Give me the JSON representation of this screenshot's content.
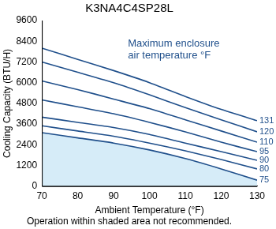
{
  "chart_data": {
    "type": "line",
    "title": "K3NA4C4SP28L",
    "x_label": "Ambient Temperature (°F)",
    "y_label": "Cooling Capacity (BTU/H)",
    "annotation": [
      "Maximum enclosure",
      "air temperature °F"
    ],
    "note": "Operation within shaded area not recommended.",
    "x": [
      70,
      80,
      90,
      100,
      110,
      120,
      130
    ],
    "series": [
      {
        "name": "131",
        "color": "#1f4f8b",
        "values": [
          8000,
          7350,
          6700,
          6000,
          5200,
          4450,
          3800
        ]
      },
      {
        "name": "120",
        "color": "#1f4f8b",
        "values": [
          7200,
          6600,
          6000,
          5300,
          4550,
          3850,
          3150
        ]
      },
      {
        "name": "110",
        "color": "#1f4f8b",
        "values": [
          6100,
          5600,
          5050,
          4500,
          3850,
          3200,
          2550
        ]
      },
      {
        "name": "95",
        "color": "#1f4f8b",
        "values": [
          5000,
          4600,
          4200,
          3700,
          3150,
          2550,
          2000
        ]
      },
      {
        "name": "90",
        "color": "#1f4f8b",
        "values": [
          4000,
          3700,
          3400,
          3000,
          2500,
          2000,
          1500
        ]
      },
      {
        "name": "80",
        "color": "#1f4f8b",
        "values": [
          3500,
          3200,
          2900,
          2500,
          2050,
          1550,
          1000
        ]
      },
      {
        "name": "75",
        "color": "#1f4f8b",
        "type": "area",
        "values": [
          3100,
          2800,
          2500,
          2100,
          1600,
          1000,
          350
        ]
      }
    ],
    "xlim": [
      70,
      130
    ],
    "xticks": [
      70,
      80,
      90,
      100,
      110,
      120,
      130
    ],
    "ylim": [
      0,
      9600
    ],
    "yticks": [
      0,
      1200,
      2400,
      3600,
      4800,
      6000,
      7200,
      8400,
      9600
    ],
    "grid": false
  }
}
